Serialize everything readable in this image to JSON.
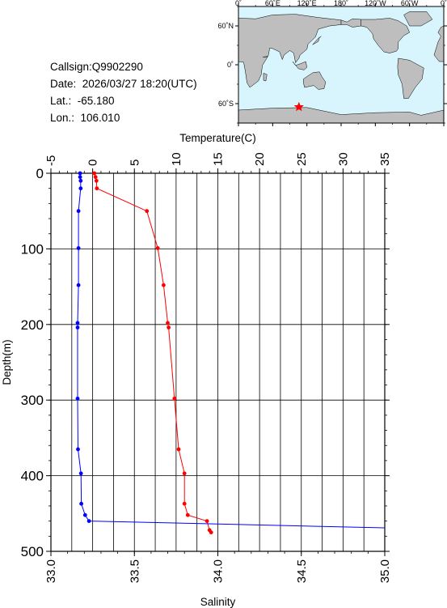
{
  "info": {
    "callsign": "Callsign:Q9902290",
    "date": "Date:  2026/03/27 18:20(UTC)",
    "lat": "Lat.:  -65.180",
    "lon": "Lon.:  106.010"
  },
  "map": {
    "top_ticks": [
      "0˚",
      "60˚E",
      "120˚E",
      "180˚",
      "120˚W",
      "60˚W",
      "0˚"
    ],
    "side_ticks": [
      "60˚N",
      "0˚",
      "60˚S"
    ],
    "ocean_color": "#d8f4fc",
    "land_color": "#bebebe",
    "marker_color": "#ff0000",
    "marker_icon": "star-icon",
    "marker_lat": -65.18,
    "marker_lon": 106.01
  },
  "chart_data": {
    "type": "line",
    "top_axis": {
      "label": "Temperature(C)",
      "range": [
        -5,
        35
      ],
      "ticks": [
        "-5",
        "0",
        "5",
        "10",
        "15",
        "20",
        "25",
        "30",
        "35"
      ]
    },
    "bottom_axis": {
      "label": "Salinity",
      "range": [
        33.0,
        35.0
      ],
      "ticks": [
        "33.0",
        "33.5",
        "34.0",
        "34.5",
        "35.0"
      ]
    },
    "y_axis": {
      "label": "Depth(m)",
      "range": [
        0,
        500
      ],
      "inverted": true,
      "ticks": [
        "0",
        "100",
        "200",
        "300",
        "400",
        "500"
      ]
    },
    "grid": true,
    "series": [
      {
        "color": "#ff0000",
        "axis": "temperature",
        "points": [
          {
            "x": 0.2,
            "y": 0
          },
          {
            "x": 0.35,
            "y": 5
          },
          {
            "x": 0.45,
            "y": 10
          },
          {
            "x": 0.5,
            "y": 20
          },
          {
            "x": 6.5,
            "y": 50
          },
          {
            "x": 7.8,
            "y": 99
          },
          {
            "x": 8.5,
            "y": 148
          },
          {
            "x": 9.0,
            "y": 198
          },
          {
            "x": 9.1,
            "y": 204
          },
          {
            "x": 9.8,
            "y": 298
          },
          {
            "x": 10.3,
            "y": 365
          },
          {
            "x": 11.0,
            "y": 397
          },
          {
            "x": 11.0,
            "y": 437
          },
          {
            "x": 11.4,
            "y": 452
          },
          {
            "x": 13.7,
            "y": 460
          },
          {
            "x": 14.0,
            "y": 472
          },
          {
            "x": 14.2,
            "y": 475
          }
        ]
      },
      {
        "color": "#0000ff",
        "axis": "salinity",
        "points": [
          {
            "x": 33.175,
            "y": 0
          },
          {
            "x": 33.175,
            "y": 5
          },
          {
            "x": 33.178,
            "y": 10
          },
          {
            "x": 33.178,
            "y": 20
          },
          {
            "x": 33.165,
            "y": 50
          },
          {
            "x": 33.165,
            "y": 99
          },
          {
            "x": 33.165,
            "y": 148
          },
          {
            "x": 33.16,
            "y": 198
          },
          {
            "x": 33.16,
            "y": 204
          },
          {
            "x": 33.16,
            "y": 298
          },
          {
            "x": 33.162,
            "y": 365
          },
          {
            "x": 33.18,
            "y": 397
          },
          {
            "x": 33.182,
            "y": 437
          },
          {
            "x": 33.205,
            "y": 452
          },
          {
            "x": 33.228,
            "y": 460
          },
          {
            "x": 35.0,
            "y": 469
          }
        ]
      }
    ]
  }
}
